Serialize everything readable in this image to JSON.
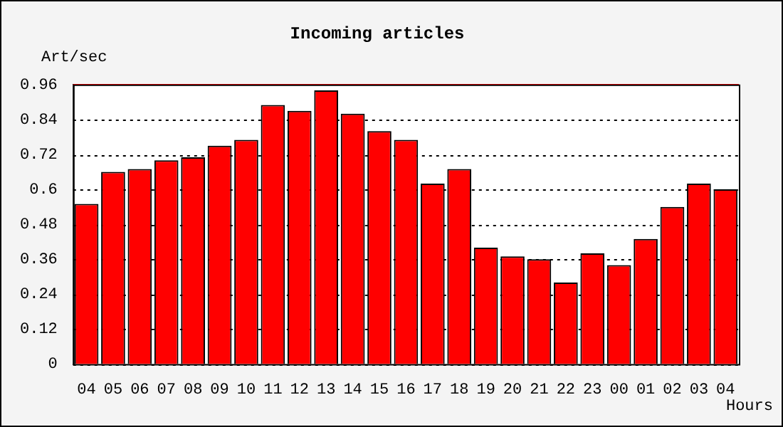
{
  "chart_data": {
    "type": "bar",
    "title": "Incoming articles",
    "ylabel": "Art/sec",
    "xlabel": "Hours",
    "categories": [
      "04",
      "05",
      "06",
      "07",
      "08",
      "09",
      "10",
      "11",
      "12",
      "13",
      "14",
      "15",
      "16",
      "17",
      "18",
      "19",
      "20",
      "21",
      "22",
      "23",
      "00",
      "01",
      "02",
      "03",
      "04"
    ],
    "values": [
      0.55,
      0.66,
      0.67,
      0.7,
      0.71,
      0.75,
      0.77,
      0.89,
      0.87,
      0.94,
      0.86,
      0.8,
      0.77,
      0.62,
      0.67,
      0.4,
      0.37,
      0.36,
      0.28,
      0.38,
      0.34,
      0.43,
      0.54,
      0.62,
      0.6
    ],
    "color": "#ff0000",
    "ylim": [
      0,
      0.96
    ],
    "yticks": [
      0,
      0.12,
      0.24,
      0.36,
      0.48,
      0.6,
      0.72,
      0.84,
      0.96
    ],
    "ref_lines": [
      {
        "axis": "y",
        "value": 0.96,
        "color": "#ff0000"
      }
    ],
    "grid": "y",
    "legend": false
  }
}
